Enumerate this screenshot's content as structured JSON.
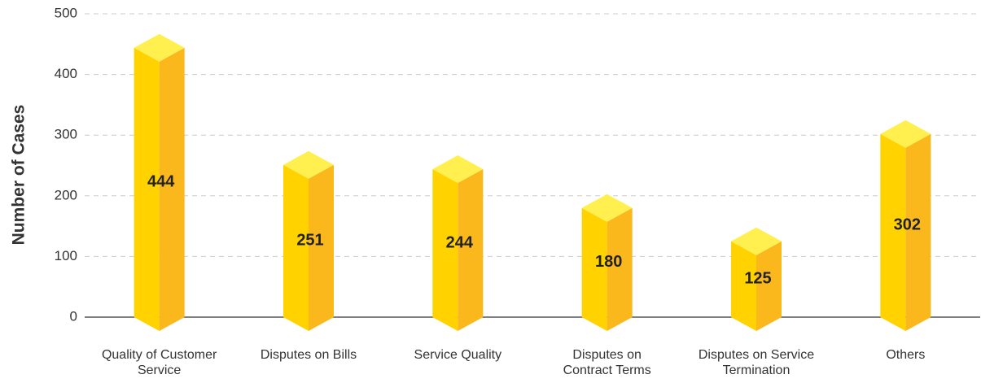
{
  "chart_data": {
    "type": "bar3d",
    "y_label": "Number of Cases",
    "categories": [
      "Quality of Customer Service",
      "Disputes on Bills",
      "Service Quality",
      "Disputes on Contract Terms",
      "Disputes on Service Termination",
      "Others"
    ],
    "values": [
      444,
      251,
      244,
      180,
      125,
      302
    ],
    "colors": {
      "front": "#ffd200",
      "side": "#fbb81c",
      "top": "#fff04f"
    },
    "ylim": [
      0,
      500
    ],
    "yticks": [
      0,
      100,
      200,
      300,
      400,
      500
    ],
    "grid": true
  }
}
